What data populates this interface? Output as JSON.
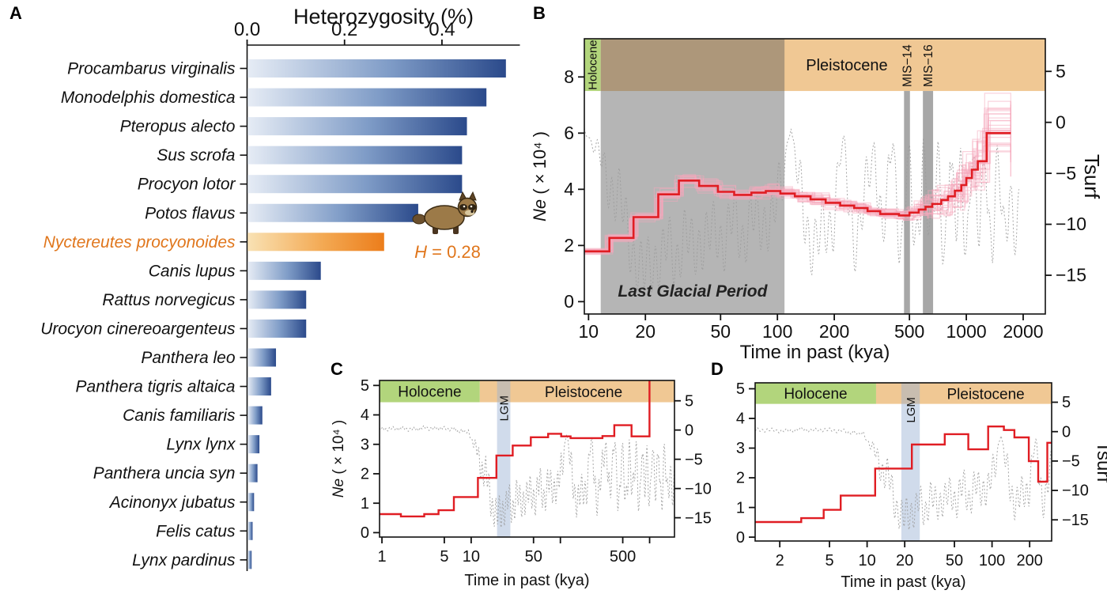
{
  "figure": {
    "background": "#ffffff"
  },
  "panels": {
    "a": {
      "letter": "A"
    },
    "b": {
      "letter": "B"
    },
    "c": {
      "letter": "C"
    },
    "d": {
      "letter": "D"
    }
  },
  "colors": {
    "bar_blue_light": "#e6ecf5",
    "bar_blue_mid": "#7f9cc7",
    "bar_blue_dark": "#2b4a8b",
    "bar_orange_light": "#f9e2b4",
    "bar_orange_dark": "#ec7d1b",
    "highlight_text": "#e0761c",
    "holocene_green": "#b2d57c",
    "pleistocene_tan": "#f0c894",
    "glacial_gray": "rgba(90,90,90,0.45)",
    "mis_gray": "rgba(80,80,80,0.5)",
    "lgm_blue": "rgba(150,175,210,0.45)",
    "ne_red": "#e01d23",
    "bootstrap_pink": "#f6a8bb",
    "tsurf_gray": "#9c9c9c",
    "axis_black": "#111111"
  },
  "tsurf_env": [
    [
      0.9,
      0.1
    ],
    [
      1.5,
      0.3
    ],
    [
      2.2,
      0.1
    ],
    [
      3,
      0.4
    ],
    [
      3.8,
      0.2
    ],
    [
      4.6,
      0.4
    ],
    [
      5.4,
      0.1
    ],
    [
      6.2,
      0.3
    ],
    [
      7,
      -0.3
    ],
    [
      7.8,
      0.1
    ],
    [
      8.6,
      -0.6
    ],
    [
      9.3,
      -0.2
    ],
    [
      10,
      -1.4
    ],
    [
      10.8,
      -2.6
    ],
    [
      11.6,
      -3.8
    ],
    [
      12.6,
      -5.2
    ],
    [
      13.8,
      -7
    ],
    [
      15.2,
      -9
    ],
    [
      16.8,
      -11.5
    ],
    [
      18.3,
      -14.2
    ],
    [
      19.5,
      -15.8
    ],
    [
      20.8,
      -13.8
    ],
    [
      22.5,
      -12.8
    ],
    [
      24.5,
      -14
    ],
    [
      26.5,
      -12.2
    ],
    [
      29,
      -12.8
    ],
    [
      32,
      -11.6
    ],
    [
      35,
      -12.6
    ],
    [
      39,
      -11
    ],
    [
      43,
      -12
    ],
    [
      48,
      -10.4
    ],
    [
      53,
      -11.4
    ],
    [
      59,
      -9.8
    ],
    [
      65,
      -11
    ],
    [
      72,
      -9.4
    ],
    [
      79,
      -10.6
    ],
    [
      87,
      -8.8
    ],
    [
      95,
      -9.6
    ],
    [
      102,
      -7.5
    ],
    [
      108,
      -5
    ],
    [
      113,
      -1.8
    ],
    [
      118,
      -0.4
    ],
    [
      124,
      -3.5
    ],
    [
      131,
      -7
    ],
    [
      140,
      -9.8
    ],
    [
      152,
      -11.2
    ],
    [
      166,
      -11.8
    ],
    [
      182,
      -10.8
    ],
    [
      198,
      -8.8
    ],
    [
      212,
      -4.2
    ],
    [
      224,
      -1.8
    ],
    [
      238,
      -7.5
    ],
    [
      254,
      -11
    ],
    [
      272,
      -10
    ],
    [
      292,
      -7.8
    ],
    [
      312,
      -4.5
    ],
    [
      326,
      -2
    ],
    [
      342,
      -6.5
    ],
    [
      360,
      -10.5
    ],
    [
      380,
      -9
    ],
    [
      398,
      -3.5
    ],
    [
      410,
      -1.8
    ],
    [
      424,
      -6
    ],
    [
      440,
      -10
    ],
    [
      456,
      -11.5
    ],
    [
      472,
      -9
    ],
    [
      486,
      -3.5
    ],
    [
      498,
      -4.5
    ],
    [
      512,
      -8.5
    ],
    [
      528,
      -11
    ],
    [
      545,
      -11.8
    ],
    [
      562,
      -9
    ],
    [
      578,
      -5
    ],
    [
      592,
      -1.5
    ],
    [
      608,
      -5
    ],
    [
      625,
      -9
    ],
    [
      645,
      -11.8
    ],
    [
      668,
      -10
    ],
    [
      690,
      -6
    ],
    [
      708,
      -2
    ],
    [
      726,
      -6
    ],
    [
      748,
      -10
    ],
    [
      772,
      -11.8
    ],
    [
      798,
      -8
    ],
    [
      818,
      -3
    ],
    [
      836,
      -5.5
    ],
    [
      858,
      -9.5
    ],
    [
      882,
      -11.5
    ],
    [
      908,
      -8
    ],
    [
      932,
      -3.5
    ],
    [
      952,
      -5
    ],
    [
      976,
      -9
    ],
    [
      1002,
      -11.5
    ],
    [
      1030,
      -9
    ],
    [
      1058,
      -4.5
    ],
    [
      1082,
      -3
    ],
    [
      1110,
      -7.5
    ],
    [
      1140,
      -10.5
    ],
    [
      1172,
      -11.5
    ],
    [
      1205,
      -8
    ],
    [
      1238,
      -4
    ],
    [
      1268,
      -3
    ],
    [
      1300,
      -7.5
    ],
    [
      1336,
      -10.5
    ],
    [
      1375,
      -11.5
    ],
    [
      1416,
      -8.5
    ],
    [
      1458,
      -4.5
    ],
    [
      1500,
      -6
    ],
    [
      1545,
      -9.5
    ],
    [
      1592,
      -11.5
    ],
    [
      1640,
      -9
    ],
    [
      1690,
      -5.5
    ],
    [
      1742,
      -7.5
    ],
    [
      1796,
      -10
    ],
    [
      1850,
      -11
    ],
    [
      1900,
      -10
    ]
  ],
  "tsurf_wiggle": {
    "amp1": 2.3,
    "freq1": 26,
    "amp2": 1.6,
    "freq2": 8.5
  },
  "chart_data": [
    {
      "id": "A",
      "type": "bar",
      "orientation": "horizontal",
      "title": "Heterozygosity (%)",
      "xlim": [
        0,
        0.56
      ],
      "xtick_values": [
        0,
        0.2,
        0.4
      ],
      "xtick_labels": [
        "0.0",
        "0.2",
        "0.4"
      ],
      "bars": [
        {
          "species": "Procambarus virginalis",
          "value": 0.53
        },
        {
          "species": "Monodelphis domestica",
          "value": 0.49
        },
        {
          "species": "Pteropus alecto",
          "value": 0.45
        },
        {
          "species": "Sus scrofa",
          "value": 0.44
        },
        {
          "species": "Procyon lotor",
          "value": 0.44
        },
        {
          "species": "Potos flavus",
          "value": 0.35
        },
        {
          "species": "Nyctereutes procyonoides",
          "value": 0.28,
          "highlight": true
        },
        {
          "species": "Canis lupus",
          "value": 0.15
        },
        {
          "species": "Rattus norvegicus",
          "value": 0.12
        },
        {
          "species": "Urocyon cinereoargenteus",
          "value": 0.12
        },
        {
          "species": "Panthera leo",
          "value": 0.058
        },
        {
          "species": "Panthera tigris altaica",
          "value": 0.048
        },
        {
          "species": "Canis familiaris",
          "value": 0.03
        },
        {
          "species": "Lynx lynx",
          "value": 0.024
        },
        {
          "species": "Panthera uncia syn",
          "value": 0.02
        },
        {
          "species": "Acinonyx jubatus",
          "value": 0.013
        },
        {
          "species": "Felis catus",
          "value": 0.01
        },
        {
          "species": "Lynx pardinus",
          "value": 0.008
        }
      ],
      "annotation": {
        "var": "H",
        "rest": " = 0.28"
      }
    },
    {
      "id": "B",
      "type": "line",
      "style": "step",
      "xlabel": "Time in past (kya)",
      "ylabel_left": {
        "italic": "Ne",
        "rest": " ( × 10⁴ )"
      },
      "ylabel_right": "Tsurf",
      "xlim": [
        9.5,
        2620
      ],
      "xticks": [
        10,
        20,
        50,
        100,
        200,
        500,
        1000,
        2000
      ],
      "ylim_left": [
        -0.44,
        9.36
      ],
      "yticks_left": [
        0,
        2,
        4,
        6,
        8
      ],
      "ylim_right": [
        -18.8,
        8.2
      ],
      "yticks_right": [
        5,
        0,
        -5,
        -10,
        -15
      ],
      "epochs": {
        "band_bottom_value": 7.5,
        "holocene": {
          "label": "Holocene",
          "to": 11.6
        },
        "pleistocene": {
          "label": "Pleistocene",
          "label_t": 233
        }
      },
      "regions": [
        {
          "kind": "lgp",
          "label": "Last Glacial Period",
          "from": 11.6,
          "to": 109
        },
        {
          "kind": "mis",
          "label": "MIS−14",
          "from": 468,
          "to": 503
        },
        {
          "kind": "mis",
          "label": "MIS−16",
          "from": 589,
          "to": 667
        }
      ],
      "ne_steps": [
        [
          9.5,
          1.79
        ],
        [
          12.9,
          2.27
        ],
        [
          17.3,
          3.01
        ],
        [
          23.4,
          3.82
        ],
        [
          30.1,
          4.31
        ],
        [
          38.5,
          4.12
        ],
        [
          48.4,
          3.91
        ],
        [
          59,
          3.8
        ],
        [
          72.8,
          3.88
        ],
        [
          86.8,
          3.94
        ],
        [
          103.6,
          3.85
        ],
        [
          123.6,
          3.75
        ],
        [
          149.8,
          3.64
        ],
        [
          180,
          3.52
        ],
        [
          215,
          3.42
        ],
        [
          255,
          3.33
        ],
        [
          300,
          3.22
        ],
        [
          350,
          3.12
        ],
        [
          440,
          3.07
        ],
        [
          500,
          3.17
        ],
        [
          560,
          3.28
        ],
        [
          608,
          3.38
        ],
        [
          660,
          3.48
        ],
        [
          737,
          3.62
        ],
        [
          800,
          3.75
        ],
        [
          870,
          3.95
        ],
        [
          940,
          4.15
        ],
        [
          1000,
          4.4
        ],
        [
          1070,
          4.7
        ],
        [
          1150,
          5.0
        ],
        [
          1280,
          6.0
        ],
        [
          1720,
          6.0
        ]
      ],
      "bootstrap": {
        "replicates": 26,
        "spread_base": 0.05,
        "spread_max": 0.24,
        "ramp_from_kya": 400
      },
      "tsurf_end": 1900
    },
    {
      "id": "C",
      "type": "line",
      "style": "step",
      "xlabel": "Time in past (kya)",
      "ylabel_left": {
        "italic": "Ne",
        "rest": " ( × 10⁴ )"
      },
      "xlim": [
        0.94,
        1900
      ],
      "xticks": [
        1,
        5,
        10,
        50,
        500
      ],
      "xticks_minor": [
        100,
        1000
      ],
      "ylim_left": [
        -0.15,
        5.17
      ],
      "yticks_left": [
        0,
        1,
        2,
        3,
        4,
        5
      ],
      "ylim_right": [
        -18.3,
        8.48
      ],
      "yticks_right": [
        5,
        0,
        -5,
        -10,
        -15
      ],
      "epochs": {
        "band_bottom_value": 4.43,
        "holocene": {
          "label": "Holocene",
          "to": 12.5
        },
        "pleistocene": {
          "label": "Pleistocene",
          "label_t": 182
        }
      },
      "regions": [
        {
          "kind": "lgm",
          "label": "LGM",
          "from": 19.5,
          "to": 27.5
        }
      ],
      "ne_steps": [
        [
          0.94,
          0.63
        ],
        [
          1.63,
          0.55
        ],
        [
          2.98,
          0.63
        ],
        [
          4.31,
          0.76
        ],
        [
          6.4,
          1.21
        ],
        [
          11.9,
          1.86
        ],
        [
          19.2,
          2.62
        ],
        [
          29.2,
          2.96
        ],
        [
          46.6,
          3.24
        ],
        [
          72.8,
          3.36
        ],
        [
          102,
          3.27
        ],
        [
          130,
          3.21
        ],
        [
          296,
          3.28
        ],
        [
          402,
          3.65
        ],
        [
          627,
          3.27
        ],
        [
          998,
          5.4
        ],
        [
          1012,
          5.4
        ]
      ],
      "tsurf_end": 1900
    },
    {
      "id": "D",
      "type": "line",
      "style": "step",
      "xlabel": "Time in past (kya)",
      "ylabel_right": "Tsurf",
      "xlim": [
        1.27,
        300
      ],
      "xticks": [
        2,
        5,
        10,
        20,
        50,
        100,
        200
      ],
      "ylim_left": [
        -0.13,
        5.2
      ],
      "yticks_left": [
        0,
        1,
        2,
        3,
        4,
        5
      ],
      "ylim_right": [
        -18.6,
        8.3
      ],
      "yticks_right": [
        5,
        0,
        -5,
        -10,
        -15
      ],
      "epochs": {
        "band_bottom_value": 4.49,
        "holocene": {
          "label": "Holocene",
          "to": 11.8
        },
        "pleistocene": {
          "label": "Pleistocene",
          "label_t": 89
        }
      },
      "regions": [
        {
          "kind": "lgm",
          "label": "LGM",
          "from": 18.8,
          "to": 26.4
        }
      ],
      "ne_steps": [
        [
          1.27,
          0.51
        ],
        [
          2.97,
          0.64
        ],
        [
          4.49,
          0.92
        ],
        [
          6.15,
          1.4
        ],
        [
          11.6,
          2.31
        ],
        [
          22.8,
          3.12
        ],
        [
          41.8,
          3.47
        ],
        [
          64.6,
          2.96
        ],
        [
          93.1,
          3.73
        ],
        [
          124.5,
          3.61
        ],
        [
          151,
          3.36
        ],
        [
          197,
          2.56
        ],
        [
          234,
          1.87
        ],
        [
          277,
          3.18
        ],
        [
          300,
          3.18
        ]
      ],
      "tsurf_end": 300
    }
  ]
}
